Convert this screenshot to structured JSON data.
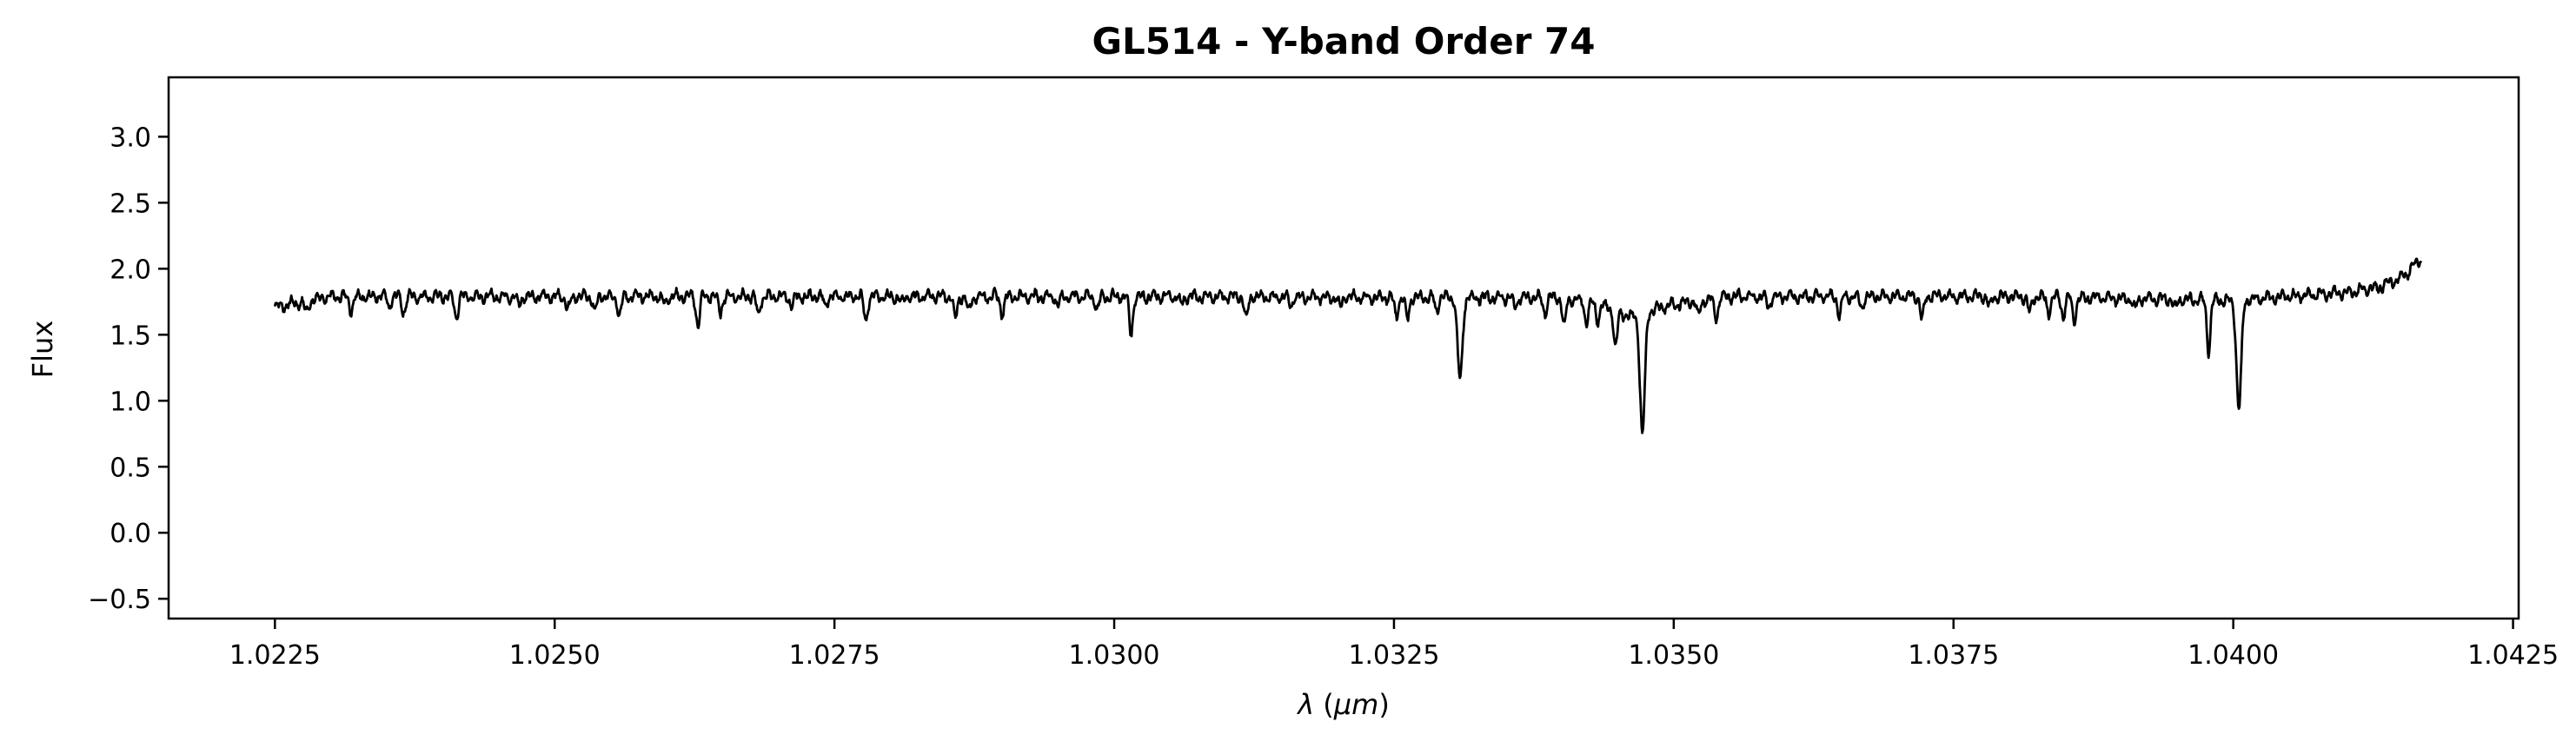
{
  "chart_data": {
    "type": "line",
    "title": "GL514 - Y-band Order 74",
    "xlabel": "λ (μm)",
    "xlabel_parts": {
      "symbol": "λ",
      "unit": "μm"
    },
    "ylabel": "Flux",
    "xlim": [
      1.02155,
      1.04255
    ],
    "ylim": [
      -0.65,
      3.45
    ],
    "x_ticks": [
      1.0225,
      1.025,
      1.0275,
      1.03,
      1.0325,
      1.035,
      1.0375,
      1.04,
      1.0425
    ],
    "x_tick_labels": [
      "1.0225",
      "1.0250",
      "1.0275",
      "1.0300",
      "1.0325",
      "1.0350",
      "1.0375",
      "1.0400",
      "1.0425"
    ],
    "y_ticks": [
      -0.5,
      0.0,
      0.5,
      1.0,
      1.5,
      2.0,
      2.5,
      3.0
    ],
    "y_tick_labels": [
      "−0.5",
      "0.0",
      "0.5",
      "1.0",
      "1.5",
      "2.0",
      "2.5",
      "3.0"
    ],
    "grid": false,
    "legend": "none",
    "line_color": "#000000",
    "series": [
      {
        "x_range": [
          1.0225,
          1.04168
        ],
        "continuum": [
          [
            1.0225,
            1.71
          ],
          [
            1.023,
            1.79
          ],
          [
            1.025,
            1.79
          ],
          [
            1.03,
            1.79
          ],
          [
            1.034,
            1.78
          ],
          [
            1.0343,
            1.74
          ],
          [
            1.0346,
            1.64
          ],
          [
            1.035,
            1.73
          ],
          [
            1.0355,
            1.79
          ],
          [
            1.038,
            1.79
          ],
          [
            1.04,
            1.76
          ],
          [
            1.0405,
            1.79
          ],
          [
            1.041,
            1.82
          ],
          [
            1.0413,
            1.86
          ],
          [
            1.0415,
            1.93
          ],
          [
            1.04168,
            2.07
          ]
        ],
        "absorption_lines": [
          [
            1.02278,
            0.09
          ],
          [
            1.02318,
            0.1
          ],
          [
            1.02352,
            0.08
          ],
          [
            1.02365,
            0.12
          ],
          [
            1.02412,
            0.16
          ],
          [
            1.02468,
            0.07
          ],
          [
            1.02512,
            0.1
          ],
          [
            1.02536,
            0.12
          ],
          [
            1.02558,
            0.14
          ],
          [
            1.02598,
            0.06
          ],
          [
            1.02628,
            0.22
          ],
          [
            1.02648,
            0.12
          ],
          [
            1.02682,
            0.14
          ],
          [
            1.02712,
            0.08
          ],
          [
            1.02742,
            0.07
          ],
          [
            1.02778,
            0.19
          ],
          [
            1.0281,
            0.06
          ],
          [
            1.02858,
            0.18
          ],
          [
            1.0287,
            0.12
          ],
          [
            1.029,
            0.13
          ],
          [
            1.0295,
            0.07
          ],
          [
            1.02985,
            0.1
          ],
          [
            1.03015,
            0.28
          ],
          [
            1.0306,
            0.06
          ],
          [
            1.03118,
            0.17
          ],
          [
            1.03158,
            0.07
          ],
          [
            1.03202,
            0.08
          ],
          [
            1.03252,
            0.14
          ],
          [
            1.03262,
            0.17
          ],
          [
            1.03288,
            0.1
          ],
          [
            1.03309,
            0.62
          ],
          [
            1.03358,
            0.07
          ],
          [
            1.03385,
            0.12
          ],
          [
            1.03402,
            0.22
          ],
          [
            1.03422,
            0.16
          ],
          [
            1.03432,
            0.12
          ],
          [
            1.03448,
            0.28
          ],
          [
            1.03472,
            0.92
          ],
          [
            1.03522,
            0.12
          ],
          [
            1.03538,
            0.15
          ],
          [
            1.03585,
            0.08
          ],
          [
            1.03648,
            0.14
          ],
          [
            1.03668,
            0.08
          ],
          [
            1.03722,
            0.18
          ],
          [
            1.03782,
            0.08
          ],
          [
            1.03818,
            0.12
          ],
          [
            1.03835,
            0.11
          ],
          [
            1.03848,
            0.14
          ],
          [
            1.03858,
            0.17
          ],
          [
            1.03912,
            0.08
          ],
          [
            1.03948,
            0.07
          ],
          [
            1.03978,
            0.38
          ],
          [
            1.04005,
            0.82
          ]
        ]
      }
    ]
  }
}
